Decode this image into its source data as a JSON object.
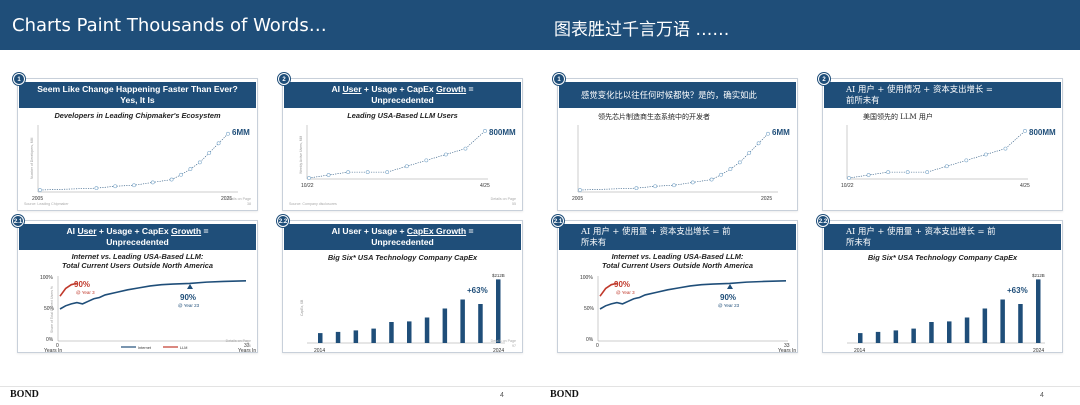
{
  "left_slide": {
    "title": "Charts Paint Thousands of Words…",
    "footer_brand": "BOND",
    "page_number": "4",
    "cards": [
      {
        "badge": "1",
        "header_lines": [
          "Seem Like Change Happening Faster Than Ever?",
          "Yes, It Is"
        ],
        "subtitle": "Developers in Leading Chipmaker's Ecosystem",
        "big_label": "6MM",
        "x_start": "2005",
        "x_end": "2025",
        "ylabel": "Number of Developers, MM",
        "source": "Source: Leading Chipmaker",
        "details": "Details on Page 38"
      },
      {
        "badge": "2",
        "header_html": "AI <u>User</u> + Usage + CapEx <u>Growth</u> =",
        "header_line2": "Unprecedented",
        "subtitle": "Leading USA-Based LLM Users",
        "big_label": "800MM",
        "x_start": "10/22",
        "x_end": "4/25",
        "ylabel": "Weekly Active Users, MM",
        "source": "Source: Company disclosures",
        "details": "Details on Page 55"
      },
      {
        "badge": "2.1",
        "header_html": "AI <u>User</u> + Usage + CapEx <u>Growth</u> =",
        "header_line2": "Unprecedented",
        "subtitle_lines": [
          "Internet vs. Leading USA-Based LLM:",
          "Total Current Users Outside North America"
        ],
        "label_red": "90%",
        "label_red_sub": "@ Year 3",
        "label_blue": "90%",
        "label_blue_sub": "@ Year 23",
        "y_ticks": [
          "100%",
          "50%",
          "0%"
        ],
        "x_start": "0",
        "x_end": "33",
        "x_axis_label": "Years In",
        "ylabel": "Share of Total Current Users %",
        "legend": [
          "Internet",
          "LLM"
        ],
        "source": "Note: LLM share of monthly active mobile app users. Mobile users lag total mobile & active countries, including China and Russia, as of 2025",
        "source2": "Source: United Nations / International Telecommunications Union (2025), Sensor Tower (2025)",
        "details": "Details on Page 56"
      },
      {
        "badge": "2.2",
        "header_html": "AI User + Usage + <u>CapEx Growth</u> =",
        "header_line2": "Unprecedented",
        "subtitle": "Big Six* USA Technology Company CapEx",
        "big_label": "+63%",
        "top_label": "$212B",
        "x_start": "2014",
        "x_end": "2024",
        "ylabel": "CapEx, $B",
        "source": "*Apple, NVIDIA, Microsoft, Alphabet, Amazon (AWS only), & Meta Platforms",
        "source2": "Source: Capital IQ (2025), Morgan Stanley",
        "details": "Details on Page 97"
      }
    ]
  },
  "right_slide": {
    "title": "图表胜过千言万语 ……",
    "footer_brand": "BOND",
    "page_number": "4",
    "cards": [
      {
        "badge": "1",
        "header": "感觉变化比以往任何时候都快？是的，确实如此",
        "subtitle": "领先芯片制造商生态系统中的开发者",
        "big_label": "6MM",
        "x_start": "2005",
        "x_end": "2025"
      },
      {
        "badge": "2",
        "header_l1": "AI 用户 + 使用情况 + 资本支出增长 =",
        "header_l2": "前所未有",
        "subtitle": "美国领先的 LLM 用户",
        "big_label": "800MM",
        "x_start": "10/22",
        "x_end": "4/25"
      },
      {
        "badge": "2.1",
        "header_l1": "AI 用户 + 使用量 + 资本支出增长 = 前",
        "header_l2": "所未有",
        "subtitle_lines": [
          "Internet vs. Leading USA-Based LLM:",
          "Total Current Users Outside North America"
        ],
        "label_red": "90%",
        "label_red_sub": "@ Year 3",
        "label_blue": "90%",
        "label_blue_sub": "@ Year 23",
        "y_ticks": [
          "100%",
          "50%",
          "0%"
        ],
        "x_start": "0",
        "x_end": "33",
        "x_axis_label": "Years In"
      },
      {
        "badge": "2.2",
        "header_l1": "AI 用户 + 使用量 + 资本支出增长 = 前",
        "header_l2": "所未有",
        "subtitle": "Big Six* USA Technology Company CapEx",
        "big_label": "+63%",
        "top_label": "$212B",
        "x_start": "2014",
        "x_end": "2024"
      }
    ]
  },
  "chart_data": [
    {
      "type": "scatter",
      "title": "Developers in Leading Chipmaker's Ecosystem",
      "x": [
        2005,
        2011,
        2013,
        2015,
        2017,
        2019,
        2020,
        2021,
        2022,
        2023,
        2024,
        2025
      ],
      "y": [
        0.1,
        0.3,
        0.5,
        0.6,
        0.9,
        1.2,
        1.7,
        2.3,
        3.0,
        4.0,
        5.0,
        6.0
      ],
      "ylabel": "Number of Developers, MM",
      "xlim": [
        2005,
        2025
      ],
      "ylim": [
        0,
        6.5
      ]
    },
    {
      "type": "line",
      "title": "Leading USA-Based LLM Users",
      "x": [
        "10/22",
        "1/23",
        "2/23",
        "9/23",
        "11/23",
        "8/24",
        "12/24",
        "2/25",
        "3/25",
        "4/25"
      ],
      "y": [
        0,
        50,
        100,
        100,
        100,
        200,
        300,
        400,
        500,
        800
      ],
      "ylabel": "Weekly Active Users, MM",
      "ylim": [
        0,
        850
      ]
    },
    {
      "type": "line",
      "title": "Internet vs. Leading USA-Based LLM: Total Current Users Outside North America",
      "ylabel": "Share of Total Current Users %",
      "xlabel": "Years In",
      "ylim": [
        0,
        100
      ],
      "series": [
        {
          "name": "Internet",
          "x": [
            0,
            1,
            2,
            3,
            4,
            5,
            6,
            7,
            8,
            10,
            12,
            14,
            16,
            18,
            20,
            23,
            26,
            29,
            33
          ],
          "y": [
            50,
            55,
            58,
            60,
            58,
            62,
            66,
            68,
            72,
            76,
            80,
            83,
            86,
            88,
            89,
            90,
            92,
            93,
            94
          ]
        },
        {
          "name": "LLM",
          "x": [
            0,
            1,
            2,
            3
          ],
          "y": [
            70,
            82,
            88,
            90
          ]
        }
      ]
    },
    {
      "type": "bar",
      "title": "Big Six* USA Technology Company CapEx",
      "categories": [
        "2014",
        "2015",
        "2016",
        "2017",
        "2018",
        "2019",
        "2020",
        "2021",
        "2022",
        "2023",
        "2024"
      ],
      "values": [
        33,
        37,
        42,
        48,
        70,
        72,
        85,
        115,
        145,
        130,
        212
      ],
      "ylabel": "CapEx, $B",
      "ylim": [
        0,
        220
      ]
    }
  ]
}
